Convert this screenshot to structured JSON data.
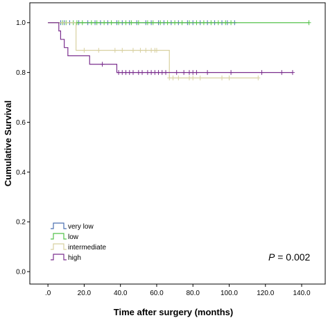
{
  "chart_data": {
    "type": "line",
    "subtype": "kaplan-meier",
    "xlabel": "Time after surgery (months)",
    "ylabel": "Cumulative Survival",
    "xlim": [
      -10,
      153
    ],
    "ylim": [
      -0.05,
      1.08
    ],
    "x_ticks": [
      ".0",
      "20.0",
      "40.0",
      "60.0",
      "80.0",
      "100.0",
      "120.0",
      "140.0"
    ],
    "x_tick_values": [
      0,
      20,
      40,
      60,
      80,
      100,
      120,
      140
    ],
    "y_ticks": [
      "0.0",
      "0.2",
      "0.4",
      "0.6",
      "0.8",
      "1.0"
    ],
    "y_tick_values": [
      0,
      0.2,
      0.4,
      0.6,
      0.8,
      1.0
    ],
    "grid": false,
    "legend_position": "bottom-left",
    "annotation": {
      "label": "P",
      "text": " = 0.002"
    },
    "series": [
      {
        "name": "very low",
        "color": "#4a6fb0",
        "steps": [
          [
            0,
            1.0
          ],
          [
            104,
            1.0
          ]
        ],
        "censored": [
          7,
          9,
          12,
          17,
          22,
          26,
          29,
          33,
          38,
          41,
          45,
          49,
          54,
          57,
          61,
          64,
          68,
          72,
          77,
          80,
          84,
          88,
          92,
          96,
          99,
          103
        ]
      },
      {
        "name": "low",
        "color": "#55c24a",
        "steps": [
          [
            0,
            1.0
          ],
          [
            144,
            1.0
          ]
        ],
        "censored": [
          8,
          10,
          14,
          16,
          19,
          24,
          27,
          31,
          35,
          39,
          43,
          46,
          50,
          55,
          58,
          62,
          66,
          70,
          74,
          78,
          82,
          86,
          90,
          94,
          98,
          101,
          144
        ]
      },
      {
        "name": "intermediate",
        "color": "#d8d0a0",
        "steps": [
          [
            0,
            1.0
          ],
          [
            15.5,
            1.0
          ],
          [
            15.5,
            0.889
          ],
          [
            67,
            0.889
          ],
          [
            67,
            0.778
          ],
          [
            116,
            0.778
          ]
        ],
        "censored": [
          20,
          28,
          37,
          41,
          47,
          51,
          54,
          57,
          59,
          60,
          67,
          69,
          72,
          78,
          80,
          84,
          96,
          100,
          116
        ]
      },
      {
        "name": "high",
        "color": "#7b2f8e",
        "steps": [
          [
            0,
            1.0
          ],
          [
            6,
            1.0
          ],
          [
            6,
            0.967
          ],
          [
            7,
            0.967
          ],
          [
            7,
            0.933
          ],
          [
            9,
            0.933
          ],
          [
            9,
            0.9
          ],
          [
            11,
            0.9
          ],
          [
            11,
            0.867
          ],
          [
            17,
            0.867
          ],
          [
            17,
            0.867
          ],
          [
            23,
            0.867
          ],
          [
            23,
            0.833
          ],
          [
            38,
            0.833
          ],
          [
            38,
            0.8
          ],
          [
            135,
            0.8
          ]
        ],
        "censored": [
          30,
          39,
          41,
          43,
          45,
          47,
          50,
          52,
          55,
          57,
          59,
          61,
          63,
          65,
          71,
          75,
          78,
          80,
          82,
          88,
          101,
          118,
          129,
          135
        ]
      }
    ]
  }
}
